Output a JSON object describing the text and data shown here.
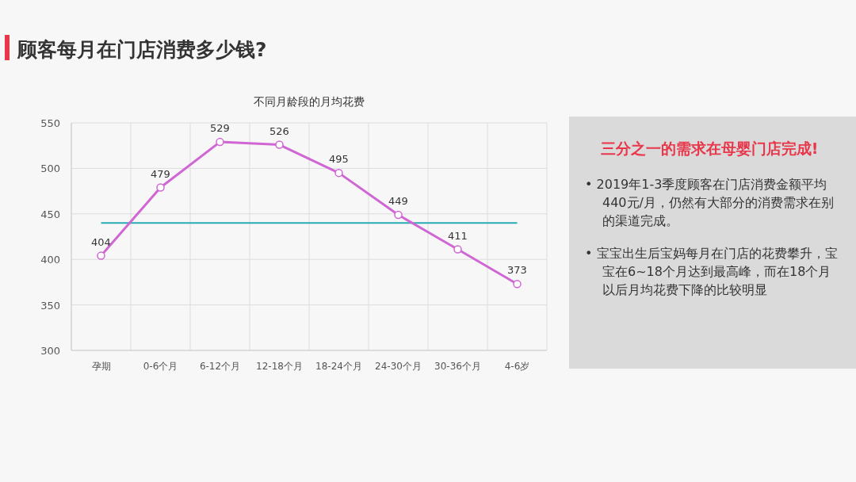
{
  "chart_data": [
    {
      "type": "line",
      "title": "顾客每月在门店消费多少钱?",
      "subtitle": "不同月龄段的月均花费",
      "categories": [
        "孕期",
        "0-6个月",
        "6-12个月",
        "12-18个月",
        "18-24个月",
        "24-30个月",
        "30-36个月",
        "4-6岁"
      ],
      "series": [
        {
          "color": "#d066d4",
          "values": [
            404,
            479,
            529,
            526,
            495,
            449,
            411,
            373
          ]
        }
      ],
      "ylim": [
        300,
        550
      ],
      "yticks": [
        300,
        350,
        400,
        450,
        500,
        550
      ],
      "grid": true,
      "marker": "circle",
      "data_labels": true,
      "ref_lines": [
        {
          "axis": "y",
          "value": 440,
          "color": "#2aaab4"
        }
      ]
    },
    {
      "type": "other",
      "title": "三分之一的需求在母婴门店完成!",
      "annotations": [
        "•  2019年1-3季度顾客在门店消费金额平均440元/月，仍然有大部分的消费需求在别的渠道完成。",
        "•  宝宝出生后宝妈每月在门店的花费攀升，宝宝在6~18个月达到最高峰，而在18个月以后月均花费下降的比较明显"
      ]
    }
  ]
}
